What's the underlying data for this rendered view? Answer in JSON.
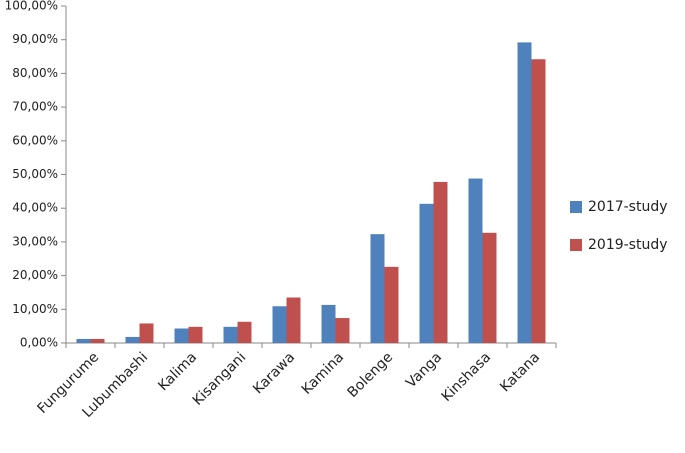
{
  "chart_data": {
    "type": "bar",
    "categories": [
      "Fungurume",
      "Lubumbashi",
      "Kalima",
      "Kisangani",
      "Karawa",
      "Kamina",
      "Bolenge",
      "Vanga",
      "Kinshasa",
      "Katana"
    ],
    "series": [
      {
        "name": "2017-study",
        "color": "#4f81bd",
        "values": [
          1.2,
          1.8,
          4.3,
          4.8,
          10.9,
          11.3,
          32.3,
          41.3,
          48.8,
          89.2
        ]
      },
      {
        "name": "2019-study",
        "color": "#c0504d",
        "values": [
          1.2,
          5.8,
          4.8,
          6.3,
          13.5,
          7.4,
          22.6,
          47.8,
          32.7,
          84.2
        ]
      }
    ],
    "ylim": [
      0,
      100
    ],
    "yticks": [
      {
        "value": 0,
        "label": "0,00%"
      },
      {
        "value": 10,
        "label": "10,00%"
      },
      {
        "value": 20,
        "label": "20,00%"
      },
      {
        "value": 30,
        "label": "30,00%"
      },
      {
        "value": 40,
        "label": "40,00%"
      },
      {
        "value": 50,
        "label": "50,00%"
      },
      {
        "value": 60,
        "label": "60,00%"
      },
      {
        "value": 70,
        "label": "70,00%"
      },
      {
        "value": 80,
        "label": "80,00%"
      },
      {
        "value": 90,
        "label": "90,00%"
      },
      {
        "value": 100,
        "label": "100,00%"
      }
    ],
    "grid": false,
    "legend": "right"
  }
}
